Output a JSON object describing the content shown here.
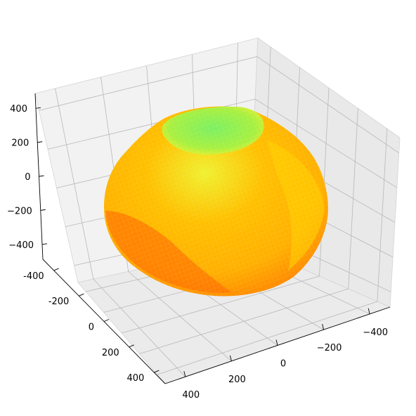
{
  "chart_data": {
    "type": "surface3d",
    "title": "",
    "xlabel": "",
    "ylabel": "",
    "zlabel": "",
    "x_ticks": [
      "-400",
      "-200",
      "0",
      "200",
      "400"
    ],
    "y_ticks": [
      "400",
      "200",
      "0",
      "−200",
      "−400"
    ],
    "z_ticks": [
      "400",
      "200",
      "0",
      "−200",
      "−400"
    ],
    "xlim": [
      -500,
      500
    ],
    "ylim": [
      -500,
      500
    ],
    "zlim": [
      -500,
      500
    ],
    "grid": true,
    "object": "irregular rounded blob (asteroid-like mesh)",
    "colormap": "green (top) to yellow to orange-red (lower front)",
    "colors": {
      "top": "#7cf062",
      "upper": "#f0f030",
      "middle": "#ffb000",
      "lower": "#ff7a00",
      "shade": "#f05a00"
    }
  }
}
